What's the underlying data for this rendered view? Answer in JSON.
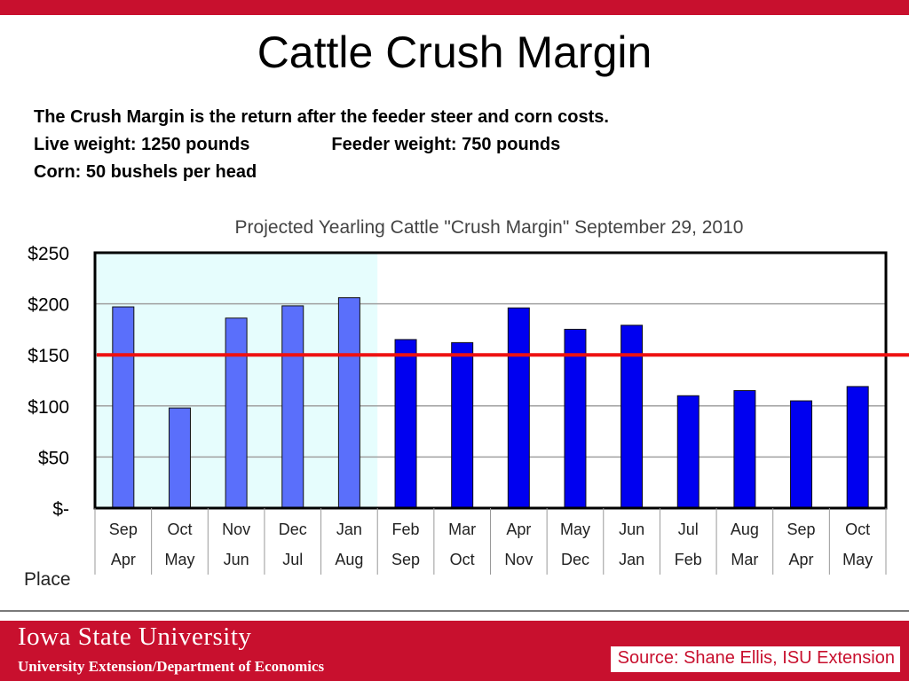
{
  "slide": {
    "title": "Cattle Crush Margin",
    "intro": {
      "line1": "The Crush Margin is the return after the feeder steer and corn costs.",
      "live_weight": "Live weight:  1250 pounds",
      "feeder_weight": "Feeder weight:  750 pounds",
      "corn": "Corn:  50 bushels per head"
    }
  },
  "chart_data": {
    "type": "bar",
    "title": "Projected Yearling Cattle \"Crush Margin\" September 29, 2010",
    "categories_top": [
      "Sep",
      "Oct",
      "Nov",
      "Dec",
      "Jan",
      "Feb",
      "Mar",
      "Apr",
      "May",
      "Jun",
      "Jul",
      "Aug",
      "Sep",
      "Oct"
    ],
    "categories_bottom": [
      "Apr",
      "May",
      "Jun",
      "Jul",
      "Aug",
      "Sep",
      "Oct",
      "Nov",
      "Dec",
      "Jan",
      "Feb",
      "Mar",
      "Apr",
      "May"
    ],
    "row_label": "Place",
    "values": [
      197,
      98,
      186,
      198,
      206,
      165,
      162,
      196,
      175,
      179,
      110,
      115,
      105,
      119
    ],
    "ylim": [
      0,
      250
    ],
    "yticks": [
      0,
      50,
      100,
      150,
      200,
      250
    ],
    "ytick_labels": [
      "$-",
      "$50",
      "$100",
      "$150",
      "$200",
      "$250"
    ],
    "reference_line": 150,
    "highlighted_count": 5,
    "grid": true,
    "colors": {
      "highlight_bar": "#5a6ffb",
      "bar": "#0000f0",
      "highlight_bg": "#e6fdfd",
      "reference_line": "#ee1111"
    }
  },
  "footer": {
    "university": "Iowa State University",
    "department": "University Extension/Department of Economics",
    "source": "Source: Shane Ellis, ISU Extension"
  },
  "colors": {
    "brand_red": "#c8102e"
  }
}
